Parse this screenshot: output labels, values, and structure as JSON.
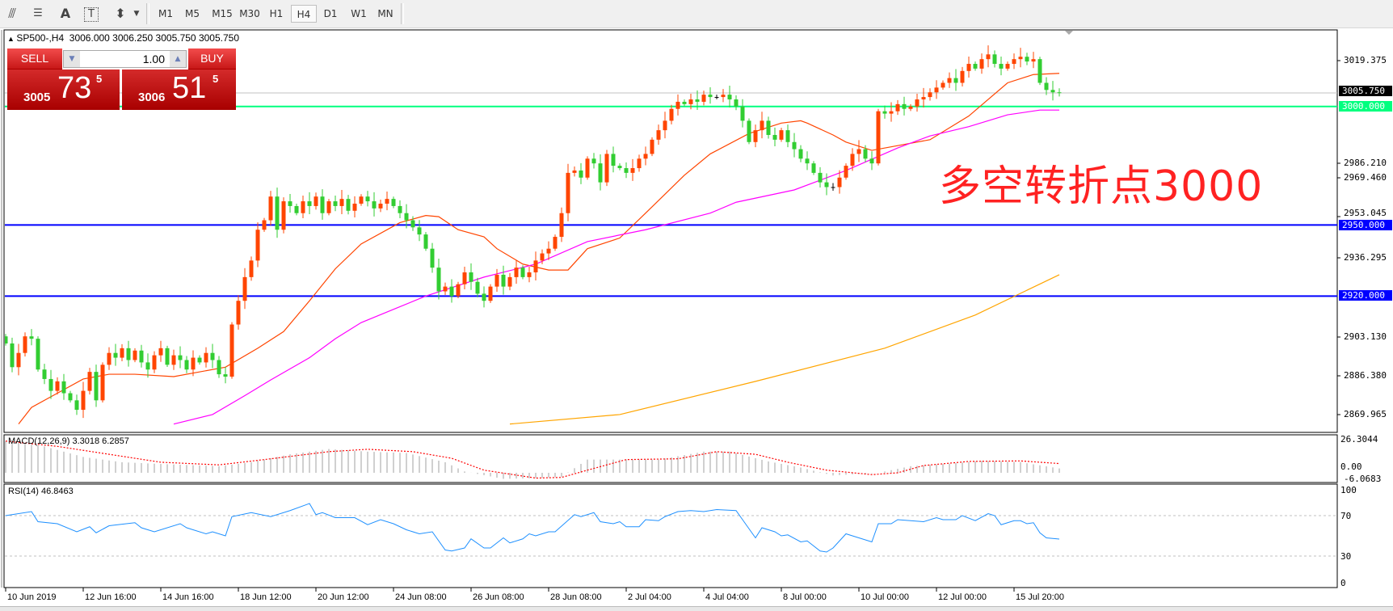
{
  "toolbar": {
    "icons": [
      "fibonacci-expansion-icon",
      "fibonacci-fan-icon",
      "text-icon",
      "text-label-icon",
      "arrows-icon"
    ],
    "timeframes": [
      "M1",
      "M5",
      "M15",
      "M30",
      "H1",
      "H4",
      "D1",
      "W1",
      "MN"
    ],
    "active_timeframe": "H4"
  },
  "chart": {
    "symbol_header": "SP500-,H4  3006.000 3006.250 3005.750 3005.750",
    "annotation": "多空转折点3000",
    "colors": {
      "bull": "#ff4500",
      "bear": "#32cd32",
      "doji": "#000000",
      "ma_fast": "#ff4500",
      "ma_mid": "#ff00ff",
      "ma_slow": "#ffa500",
      "level_green": "#00ff7f",
      "level_blue": "#0000ff",
      "bid_line": "#c0c0c0"
    }
  },
  "trade_panel": {
    "sell_label": "SELL",
    "buy_label": "BUY",
    "lot_value": "1.00",
    "sell_big": "3005",
    "sell_pips": "73",
    "sell_frac": "5",
    "buy_big": "3006",
    "buy_pips": "51",
    "buy_frac": "5"
  },
  "price_axis": {
    "ticks": [
      "3019.375",
      "2986.210",
      "2969.460",
      "2953.045",
      "2936.295",
      "2903.130",
      "2886.380",
      "2869.965"
    ],
    "current_price_label": "3005.750",
    "levels": [
      {
        "label": "3000.000",
        "value": 3000,
        "color": "#00ff7f"
      },
      {
        "label": "2950.000",
        "value": 2950,
        "color": "#0000ff"
      },
      {
        "label": "2920.000",
        "value": 2920,
        "color": "#0000ff"
      }
    ],
    "current_price": 3005.75
  },
  "date_axis": [
    "10 Jun 2019",
    "12 Jun 16:00",
    "14 Jun 16:00",
    "18 Jun 12:00",
    "20 Jun 12:00",
    "24 Jun 08:00",
    "26 Jun 08:00",
    "28 Jun 08:00",
    "2 Jul 04:00",
    "4 Jul 04:00",
    "8 Jul 00:00",
    "10 Jul 00:00",
    "12 Jul 00:00",
    "15 Jul 20:00"
  ],
  "macd": {
    "label": "MACD(12,26,9) 3.3018 6.2857",
    "axis": [
      "26.3044",
      "0.00",
      "-6.0683"
    ],
    "histogram": [
      [
        0,
        24
      ],
      [
        6,
        20
      ],
      [
        12,
        12
      ],
      [
        18,
        8
      ],
      [
        24,
        6.7
      ],
      [
        33,
        5
      ],
      [
        38,
        8
      ],
      [
        44,
        14
      ],
      [
        50,
        18
      ],
      [
        56,
        16
      ],
      [
        62,
        15
      ],
      [
        68,
        8
      ],
      [
        71,
        1
      ],
      [
        77,
        -4.6
      ],
      [
        82,
        -4
      ],
      [
        86,
        -3
      ],
      [
        90,
        10
      ],
      [
        96,
        10
      ],
      [
        101,
        10
      ],
      [
        108,
        16
      ],
      [
        112,
        16
      ],
      [
        118,
        8.6
      ],
      [
        123,
        4
      ],
      [
        128,
        -2
      ],
      [
        135,
        0
      ],
      [
        140,
        5
      ],
      [
        146,
        7
      ],
      [
        151,
        9
      ],
      [
        157,
        8
      ],
      [
        163,
        3.3
      ]
    ],
    "signal": [
      [
        0,
        24
      ],
      [
        8,
        20
      ],
      [
        16,
        14
      ],
      [
        24,
        8
      ],
      [
        33,
        6
      ],
      [
        40,
        10
      ],
      [
        50,
        16
      ],
      [
        56,
        17.8
      ],
      [
        63,
        16
      ],
      [
        69,
        11
      ],
      [
        74,
        2
      ],
      [
        82,
        -4
      ],
      [
        86,
        -3.5
      ],
      [
        90,
        2
      ],
      [
        96,
        10
      ],
      [
        104,
        10.6
      ],
      [
        110,
        16
      ],
      [
        116,
        14
      ],
      [
        121,
        8
      ],
      [
        127,
        2
      ],
      [
        134,
        -1.4
      ],
      [
        138,
        0
      ],
      [
        142,
        5.5
      ],
      [
        149,
        8.6
      ],
      [
        157,
        9
      ],
      [
        163,
        7
      ]
    ]
  },
  "rsi": {
    "label": "RSI(14) 46.8463",
    "axis": [
      "100",
      "70",
      "30",
      "0"
    ],
    "levels": [
      70,
      30
    ],
    "values": [
      [
        0,
        70
      ],
      [
        4,
        74
      ],
      [
        5,
        64
      ],
      [
        8,
        62
      ],
      [
        11,
        54
      ],
      [
        13,
        59
      ],
      [
        14,
        53
      ],
      [
        16,
        60
      ],
      [
        20,
        63
      ],
      [
        21,
        58
      ],
      [
        23,
        54
      ],
      [
        27,
        62
      ],
      [
        28,
        58
      ],
      [
        31,
        52
      ],
      [
        32,
        54
      ],
      [
        34,
        50
      ],
      [
        35,
        69
      ],
      [
        38,
        73
      ],
      [
        41,
        69
      ],
      [
        44,
        75
      ],
      [
        47,
        82
      ],
      [
        48,
        71
      ],
      [
        49,
        73
      ],
      [
        51,
        68
      ],
      [
        54,
        68
      ],
      [
        56,
        61
      ],
      [
        58,
        66
      ],
      [
        60,
        62
      ],
      [
        62,
        56
      ],
      [
        64,
        52
      ],
      [
        66,
        54
      ],
      [
        68,
        36
      ],
      [
        69,
        35
      ],
      [
        71,
        38
      ],
      [
        72,
        47
      ],
      [
        74,
        38
      ],
      [
        75,
        38
      ],
      [
        77,
        48
      ],
      [
        78,
        43
      ],
      [
        80,
        47
      ],
      [
        81,
        52
      ],
      [
        82,
        50
      ],
      [
        84,
        54
      ],
      [
        85,
        54
      ],
      [
        88,
        71
      ],
      [
        89,
        69
      ],
      [
        91,
        73
      ],
      [
        92,
        64
      ],
      [
        94,
        62
      ],
      [
        95,
        64
      ],
      [
        96,
        59
      ],
      [
        98,
        59
      ],
      [
        99,
        66
      ],
      [
        101,
        65
      ],
      [
        102,
        69
      ],
      [
        104,
        74
      ],
      [
        106,
        75
      ],
      [
        108,
        74
      ],
      [
        110,
        76
      ],
      [
        113,
        75
      ],
      [
        114,
        66
      ],
      [
        116,
        48
      ],
      [
        117,
        58
      ],
      [
        119,
        54
      ],
      [
        120,
        50
      ],
      [
        121,
        51
      ],
      [
        123,
        44
      ],
      [
        124,
        45
      ],
      [
        126,
        35
      ],
      [
        127,
        34
      ],
      [
        128,
        38
      ],
      [
        130,
        52
      ],
      [
        131,
        50
      ],
      [
        134,
        44
      ],
      [
        135,
        62
      ],
      [
        137,
        62
      ],
      [
        138,
        66
      ],
      [
        140,
        65
      ],
      [
        142,
        64
      ],
      [
        144,
        68
      ],
      [
        145,
        66
      ],
      [
        147,
        66
      ],
      [
        148,
        70
      ],
      [
        150,
        65
      ],
      [
        152,
        72
      ],
      [
        153,
        70
      ],
      [
        154,
        61
      ],
      [
        156,
        65
      ],
      [
        157,
        65
      ],
      [
        158,
        62
      ],
      [
        159,
        63
      ],
      [
        160,
        53
      ],
      [
        161,
        48
      ],
      [
        163,
        46.8
      ]
    ]
  },
  "price_series": {
    "closes": [
      2900,
      2890,
      2896,
      2903,
      2902,
      2889,
      2885,
      2880,
      2884,
      2879,
      2876,
      2872,
      2880,
      2888,
      2876,
      2891,
      2896,
      2894,
      2898,
      2893,
      2897,
      2892,
      2889,
      2895,
      2898,
      2891,
      2895,
      2893,
      2889,
      2894,
      2892,
      2896,
      2893,
      2887,
      2886,
      2908,
      2918,
      2928,
      2935,
      2948,
      2952,
      2962,
      2948,
      2960,
      2958,
      2955,
      2960,
      2958,
      2962,
      2955,
      2960,
      2958,
      2961,
      2956,
      2959,
      2962,
      2960,
      2957,
      2959,
      2961,
      2958,
      2955,
      2952,
      2949,
      2946,
      2940,
      2932,
      2922,
      2924,
      2920,
      2925,
      2930,
      2926,
      2921,
      2918,
      2924,
      2929,
      2924,
      2928,
      2932,
      2928,
      2930,
      2935,
      2938,
      2940,
      2945,
      2955,
      2972,
      2973,
      2970,
      2978,
      2976,
      2968,
      2980,
      2975,
      2974,
      2972,
      2974,
      2978,
      2980,
      2986,
      2990,
      2994,
      2999,
      3002,
      3001,
      3003,
      3002,
      3005,
      3004,
      3004,
      3005,
      3003,
      3000,
      2994,
      2985,
      2990,
      2994,
      2988,
      2986,
      2990,
      2985,
      2982,
      2978,
      2976,
      2972,
      2968,
      2966,
      2966,
      2970,
      2975,
      2980,
      2982,
      2978,
      2976,
      2998,
      2997,
      2998,
      3001,
      2999,
      3000,
      3003,
      3004,
      3006,
      3008,
      3010,
      3012,
      3010,
      3015,
      3018,
      3016,
      3020,
      3022,
      3018,
      3016,
      3018,
      3020,
      3021,
      3019,
      3020,
      3010,
      3007,
      3006,
      3005.75
    ],
    "ma_fast": [
      [
        2,
        2866
      ],
      [
        4,
        2873
      ],
      [
        8,
        2879
      ],
      [
        12,
        2885
      ],
      [
        16,
        2887
      ],
      [
        20,
        2887
      ],
      [
        26,
        2886
      ],
      [
        34,
        2890
      ],
      [
        39,
        2898
      ],
      [
        43,
        2905
      ],
      [
        47,
        2918
      ],
      [
        51,
        2931.5
      ],
      [
        55,
        2942
      ],
      [
        61,
        2951
      ],
      [
        65,
        2954
      ],
      [
        67,
        2953.5
      ],
      [
        70,
        2948
      ],
      [
        74,
        2945
      ],
      [
        76,
        2940
      ],
      [
        80,
        2933.5
      ],
      [
        84,
        2931
      ],
      [
        87,
        2931
      ],
      [
        90,
        2940
      ],
      [
        95,
        2944.5
      ],
      [
        99,
        2955
      ],
      [
        105,
        2971
      ],
      [
        109,
        2980
      ],
      [
        115,
        2988.6
      ],
      [
        120,
        2993
      ],
      [
        123,
        2994
      ],
      [
        124,
        2993
      ],
      [
        128,
        2988
      ],
      [
        130,
        2985
      ],
      [
        134,
        2981.5
      ],
      [
        138,
        2983.5
      ],
      [
        143,
        2986
      ],
      [
        149,
        2996
      ],
      [
        155,
        3010
      ],
      [
        159,
        3013.5
      ],
      [
        163,
        3014
      ]
    ],
    "ma_mid": [
      [
        26,
        2866
      ],
      [
        32,
        2870
      ],
      [
        37,
        2878
      ],
      [
        41,
        2884.6
      ],
      [
        47,
        2894
      ],
      [
        51,
        2902
      ],
      [
        55,
        2908.8
      ],
      [
        65,
        2920
      ],
      [
        74,
        2928
      ],
      [
        82,
        2933.5
      ],
      [
        90,
        2943
      ],
      [
        99,
        2948
      ],
      [
        109,
        2955
      ],
      [
        113,
        2959.6
      ],
      [
        122,
        2964.8
      ],
      [
        130,
        2973
      ],
      [
        138,
        2982.5
      ],
      [
        143,
        2987.6
      ],
      [
        149,
        2991.5
      ],
      [
        155,
        2996.5
      ],
      [
        160,
        2998.5
      ],
      [
        163,
        2998.5
      ]
    ],
    "ma_slow": [
      [
        78,
        2866
      ],
      [
        95,
        2870
      ],
      [
        116,
        2884
      ],
      [
        136,
        2898
      ],
      [
        150,
        2912
      ],
      [
        163,
        2929
      ]
    ]
  }
}
